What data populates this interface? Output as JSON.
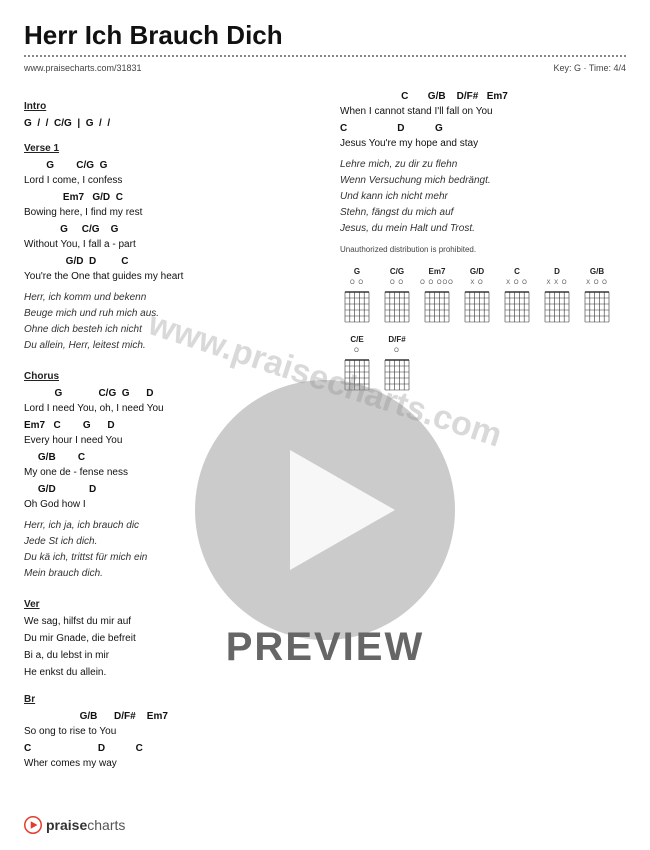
{
  "title": "Herr Ich Brauch Dich",
  "url": "www.praisecharts.com/31831",
  "key_time": "Key: G · Time: 4/4",
  "watermark": "www.praisecharts.com",
  "preview_label": "PREVIEW",
  "footer_brand_bold": "praise",
  "footer_brand_rest": "charts",
  "colors": {
    "text": "#111111",
    "bg": "#ffffff",
    "accent": "#e43d30",
    "watermark": "rgba(120,120,120,0.28)",
    "preview_gray": "#888888"
  },
  "left_column": [
    {
      "type": "section",
      "text": "Intro"
    },
    {
      "type": "chord",
      "text": "G  /  /  C/G  |  G  /  /"
    },
    {
      "type": "section",
      "text": "Verse 1"
    },
    {
      "type": "chord",
      "text": "        G        C/G  G"
    },
    {
      "type": "lyric",
      "text": "Lord I come,    I    confess"
    },
    {
      "type": "chord",
      "text": "              Em7   G/D  C"
    },
    {
      "type": "lyric",
      "text": "Bowing here, I  find  my rest"
    },
    {
      "type": "chord",
      "text": "             G     C/G    G"
    },
    {
      "type": "lyric",
      "text": "Without You, I fall a - part"
    },
    {
      "type": "chord",
      "text": "               G/D  D         C"
    },
    {
      "type": "lyric",
      "text": "You're the One   that guides my heart"
    },
    {
      "type": "italic",
      "lines": [
        "Herr, ich komm und bekenn",
        "Beuge mich und ruh mich aus.",
        "Ohne dich besteh ich nicht",
        "Du allein, Herr, leitest mich."
      ]
    },
    {
      "type": "section",
      "text": "Chorus"
    },
    {
      "type": "chord",
      "text": "           G             C/G  G      D"
    },
    {
      "type": "lyric",
      "text": "Lord I need You, oh,  I need You"
    },
    {
      "type": "chord",
      "text": "Em7   C        G      D"
    },
    {
      "type": "lyric",
      "text": "Every hour I need You"
    },
    {
      "type": "chord",
      "text": "     G/B        C"
    },
    {
      "type": "lyric",
      "text": "My one de - fense                              ness"
    },
    {
      "type": "chord",
      "text": "     G/D            D"
    },
    {
      "type": "lyric",
      "text": "Oh God how I"
    },
    {
      "type": "italic",
      "lines": [
        "Herr, ich                      ja, ich brauch dic",
        "Jede St                  ich dich.",
        "Du kä                  ich, trittst für mich ein",
        "Mein                brauch dich."
      ]
    },
    {
      "type": "section",
      "text": "Ver"
    },
    {
      "type": "lyric",
      "text": "We              sag, hilfst du mir auf"
    },
    {
      "type": "lyric",
      "text": "Du                 mir Gnade, die befreit"
    },
    {
      "type": "lyric",
      "text": "Bi            a, du lebst in mir"
    },
    {
      "type": "lyric",
      "text": "He              enkst du allein."
    },
    {
      "type": "section",
      "text": "Br"
    },
    {
      "type": "chord",
      "text": "                    G/B      D/F#    Em7"
    },
    {
      "type": "lyric",
      "text": "So                  ong to rise to  You"
    },
    {
      "type": "chord",
      "text": "C                        D           C"
    },
    {
      "type": "lyric",
      "text": "Wher                 comes my way"
    }
  ],
  "right_column": {
    "lines": [
      {
        "type": "chord",
        "text": "                      C       G/B    D/F#   Em7"
      },
      {
        "type": "lyric",
        "text": "When I cannot stand I'll  fall  on  You"
      },
      {
        "type": "chord",
        "text": "C                  D           G"
      },
      {
        "type": "lyric",
        "text": "Jesus You're my hope and stay"
      }
    ],
    "italic": [
      "Lehre mich, zu dir zu flehn",
      "Wenn Versuchung mich bedrängt.",
      "Und kann ich nicht mehr",
      "Stehn, fängst du mich auf",
      "Jesus, du mein Halt und Trost."
    ],
    "note": "Unauthorized distribution is prohibited.",
    "chord_diagrams_row1": [
      {
        "name": "G",
        "fingers": "O O"
      },
      {
        "name": "C/G",
        "fingers": "O O"
      },
      {
        "name": "Em7",
        "fingers": "O O OOO"
      },
      {
        "name": "G/D",
        "fingers": "X O"
      },
      {
        "name": "C",
        "fingers": "X O O"
      },
      {
        "name": "D",
        "fingers": "X X O"
      },
      {
        "name": "G/B",
        "fingers": "X O O"
      }
    ],
    "chord_diagrams_row2": [
      {
        "name": "C/E",
        "fingers": "O"
      },
      {
        "name": "D/F#",
        "fingers": "O"
      }
    ]
  }
}
